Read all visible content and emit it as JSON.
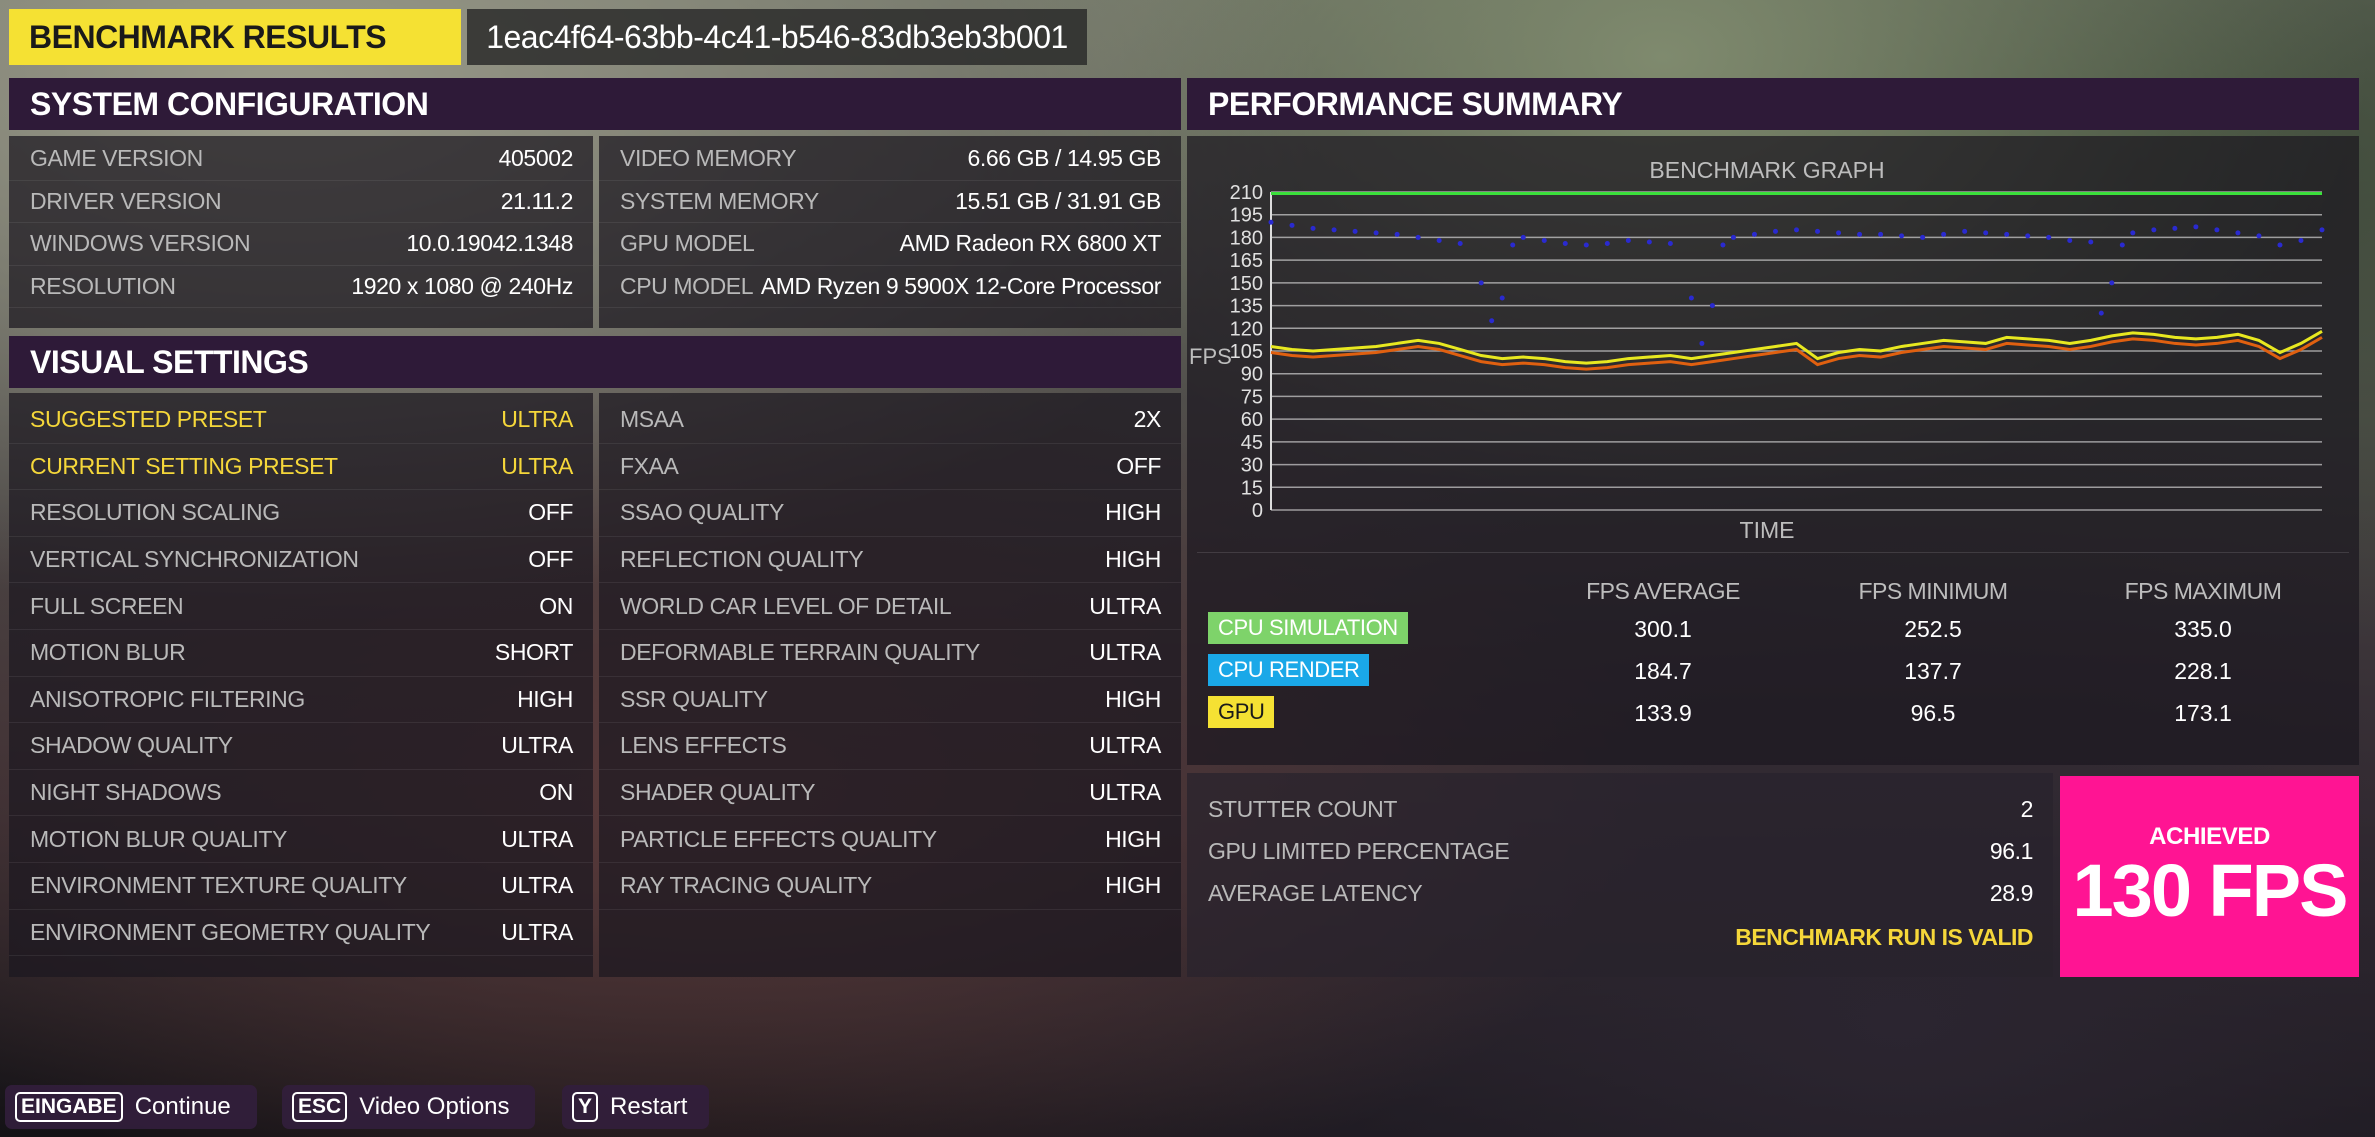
{
  "header": {
    "title": "BENCHMARK RESULTS",
    "run_id": "1eac4f64-63bb-4c41-b546-83db3eb3b001"
  },
  "system_configuration": {
    "title": "SYSTEM CONFIGURATION",
    "left": [
      {
        "label": "GAME VERSION",
        "value": "405002"
      },
      {
        "label": "DRIVER VERSION",
        "value": "21.11.2"
      },
      {
        "label": "WINDOWS VERSION",
        "value": "10.0.19042.1348"
      },
      {
        "label": "RESOLUTION",
        "value": "1920 x 1080 @ 240Hz"
      }
    ],
    "right": [
      {
        "label": "VIDEO MEMORY",
        "value": "6.66 GB / 14.95 GB"
      },
      {
        "label": "SYSTEM MEMORY",
        "value": "15.51 GB / 31.91 GB"
      },
      {
        "label": "GPU MODEL",
        "value": "AMD Radeon RX 6800 XT"
      },
      {
        "label": "CPU MODEL",
        "value": "AMD Ryzen 9 5900X 12-Core Processor"
      }
    ]
  },
  "visual_settings": {
    "title": "VISUAL SETTINGS",
    "left": [
      {
        "label": "SUGGESTED PRESET",
        "value": "ULTRA"
      },
      {
        "label": "CURRENT SETTING PRESET",
        "value": "ULTRA"
      },
      {
        "label": "RESOLUTION SCALING",
        "value": "OFF"
      },
      {
        "label": "VERTICAL SYNCHRONIZATION",
        "value": "OFF"
      },
      {
        "label": "FULL SCREEN",
        "value": "ON"
      },
      {
        "label": "MOTION BLUR",
        "value": "SHORT"
      },
      {
        "label": "ANISOTROPIC FILTERING",
        "value": "HIGH"
      },
      {
        "label": "SHADOW QUALITY",
        "value": "ULTRA"
      },
      {
        "label": "NIGHT SHADOWS",
        "value": "ON"
      },
      {
        "label": "MOTION BLUR QUALITY",
        "value": "ULTRA"
      },
      {
        "label": "ENVIRONMENT TEXTURE QUALITY",
        "value": "ULTRA"
      },
      {
        "label": "ENVIRONMENT GEOMETRY QUALITY",
        "value": "ULTRA"
      }
    ],
    "right": [
      {
        "label": "MSAA",
        "value": "2X"
      },
      {
        "label": "FXAA",
        "value": "OFF"
      },
      {
        "label": "SSAO QUALITY",
        "value": "HIGH"
      },
      {
        "label": "REFLECTION QUALITY",
        "value": "HIGH"
      },
      {
        "label": "WORLD CAR LEVEL OF DETAIL",
        "value": "ULTRA"
      },
      {
        "label": "DEFORMABLE TERRAIN QUALITY",
        "value": "ULTRA"
      },
      {
        "label": "SSR QUALITY",
        "value": "HIGH"
      },
      {
        "label": "LENS EFFECTS",
        "value": "ULTRA"
      },
      {
        "label": "SHADER QUALITY",
        "value": "ULTRA"
      },
      {
        "label": "PARTICLE EFFECTS QUALITY",
        "value": "HIGH"
      },
      {
        "label": "RAY TRACING QUALITY",
        "value": "HIGH"
      }
    ]
  },
  "performance": {
    "title": "PERFORMANCE SUMMARY",
    "columns": [
      "FPS AVERAGE",
      "FPS MINIMUM",
      "FPS MAXIMUM"
    ],
    "rows": [
      {
        "name": "CPU SIMULATION",
        "color": "#7ed36a",
        "text_color": "#ffffff",
        "values": [
          "300.1",
          "252.5",
          "335.0"
        ]
      },
      {
        "name": "CPU RENDER",
        "color": "#1aa8e8",
        "text_color": "#ffffff",
        "values": [
          "184.7",
          "137.7",
          "228.1"
        ]
      },
      {
        "name": "GPU",
        "color": "#f5e133",
        "text_color": "#1a1a1a",
        "values": [
          "133.9",
          "96.5",
          "173.1"
        ]
      }
    ],
    "stats": [
      {
        "label": "STUTTER COUNT",
        "value": "2"
      },
      {
        "label": "GPU LIMITED PERCENTAGE",
        "value": "96.1"
      },
      {
        "label": "AVERAGE LATENCY",
        "value": "28.9"
      }
    ],
    "valid_text": "BENCHMARK RUN IS VALID",
    "achieved_label": "ACHIEVED",
    "achieved_value": "130 FPS",
    "achieved_color": "#ff1493"
  },
  "chart_data": {
    "type": "scatter",
    "title": "BENCHMARK GRAPH",
    "xlabel": "TIME",
    "ylabel": "FPS",
    "ylim": [
      0,
      210
    ],
    "yticks": [
      210,
      195,
      180,
      165,
      150,
      135,
      120,
      105,
      90,
      75,
      60,
      45,
      30,
      15,
      0
    ],
    "grid": true,
    "reference_line": {
      "value": 209,
      "color": "#3be03b"
    },
    "series": [
      {
        "color": "#2a2ad0",
        "style": "points",
        "x": [
          0,
          2,
          4,
          6,
          8,
          10,
          12,
          14,
          16,
          18,
          20,
          21,
          22,
          23,
          24,
          26,
          28,
          30,
          32,
          34,
          36,
          38,
          40,
          41,
          42,
          43,
          44,
          46,
          48,
          50,
          52,
          54,
          56,
          58,
          60,
          62,
          64,
          66,
          68,
          70,
          72,
          74,
          76,
          78,
          79,
          80,
          81,
          82,
          84,
          86,
          88,
          90,
          92,
          94,
          96,
          98,
          100
        ],
        "y": [
          190,
          188,
          186,
          185,
          184,
          183,
          182,
          180,
          178,
          176,
          150,
          125,
          140,
          175,
          180,
          178,
          176,
          175,
          176,
          178,
          177,
          176,
          140,
          110,
          135,
          175,
          180,
          182,
          184,
          185,
          184,
          183,
          182,
          182,
          181,
          180,
          182,
          184,
          183,
          182,
          181,
          180,
          178,
          177,
          130,
          150,
          175,
          183,
          185,
          186,
          187,
          185,
          183,
          181,
          175,
          178,
          185
        ]
      },
      {
        "color": "#e8e820",
        "style": "line",
        "x": [
          0,
          2,
          4,
          6,
          8,
          10,
          12,
          14,
          16,
          18,
          20,
          22,
          24,
          26,
          28,
          30,
          32,
          34,
          36,
          38,
          40,
          42,
          44,
          46,
          48,
          50,
          52,
          54,
          56,
          58,
          60,
          62,
          64,
          66,
          68,
          70,
          72,
          74,
          76,
          78,
          80,
          82,
          84,
          86,
          88,
          90,
          92,
          94,
          96,
          98,
          100
        ],
        "y": [
          108,
          106,
          105,
          106,
          107,
          108,
          110,
          112,
          110,
          106,
          102,
          100,
          101,
          100,
          98,
          97,
          98,
          100,
          101,
          102,
          100,
          102,
          104,
          106,
          108,
          110,
          100,
          104,
          106,
          105,
          108,
          110,
          112,
          111,
          110,
          114,
          113,
          112,
          110,
          112,
          115,
          117,
          116,
          114,
          113,
          114,
          116,
          112,
          104,
          110,
          118
        ]
      },
      {
        "color": "#e06010",
        "style": "line",
        "x": [
          0,
          2,
          4,
          6,
          8,
          10,
          12,
          14,
          16,
          18,
          20,
          22,
          24,
          26,
          28,
          30,
          32,
          34,
          36,
          38,
          40,
          42,
          44,
          46,
          48,
          50,
          52,
          54,
          56,
          58,
          60,
          62,
          64,
          66,
          68,
          70,
          72,
          74,
          76,
          78,
          80,
          82,
          84,
          86,
          88,
          90,
          92,
          94,
          96,
          98,
          100
        ],
        "y": [
          104,
          102,
          101,
          102,
          103,
          104,
          106,
          108,
          106,
          102,
          98,
          96,
          97,
          96,
          94,
          93,
          94,
          96,
          97,
          98,
          96,
          98,
          100,
          102,
          104,
          106,
          96,
          100,
          102,
          101,
          104,
          106,
          108,
          107,
          106,
          110,
          109,
          108,
          106,
          108,
          111,
          113,
          112,
          110,
          109,
          110,
          112,
          108,
          100,
          106,
          114
        ]
      }
    ]
  },
  "footer": [
    {
      "key": "EINGABE",
      "label": "Continue"
    },
    {
      "key": "ESC",
      "label": "Video Options"
    },
    {
      "key": "Y",
      "label": "Restart"
    }
  ]
}
